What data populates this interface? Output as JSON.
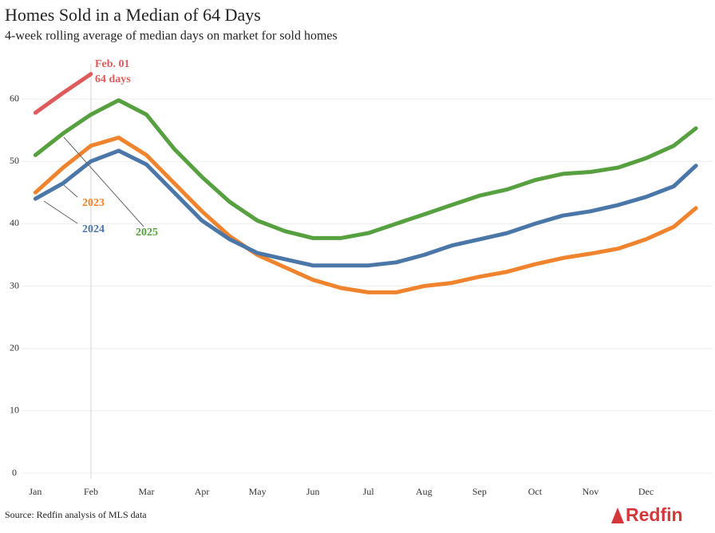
{
  "chart_data": {
    "type": "line",
    "title": "Homes Sold in a Median of 64 Days",
    "subtitle": "4-week rolling average of median days on market for sold homes",
    "source": "Source: Redfin analysis of MLS data",
    "logo": "Redfin",
    "annotation": [
      "Feb. 01",
      "64 days"
    ],
    "x": [
      0,
      0.5,
      1,
      1.5,
      2,
      2.5,
      3,
      3.5,
      4,
      4.5,
      5,
      5.5,
      6,
      6.5,
      7,
      7.5,
      8,
      8.5,
      9,
      9.5,
      10,
      10.5,
      11,
      11.5,
      11.9
    ],
    "series": [
      {
        "name": "2023",
        "color": "#f0832d",
        "values": [
          45,
          49,
          52.5,
          53.8,
          51,
          46.5,
          42,
          38,
          35,
          33,
          31,
          29.7,
          29,
          29,
          30,
          30.5,
          31.5,
          32.3,
          33.5,
          34.5,
          35.2,
          36,
          37.5,
          39.5,
          42.5
        ]
      },
      {
        "name": "2024",
        "color": "#4a77a8",
        "values": [
          44,
          46.5,
          50,
          51.7,
          49.5,
          45,
          40.5,
          37.5,
          35.3,
          34.3,
          33.3,
          33.3,
          33.3,
          33.8,
          35,
          36.5,
          37.5,
          38.5,
          40,
          41.3,
          42,
          43,
          44.3,
          46,
          49.3
        ]
      },
      {
        "name": "2025",
        "color": "#56a040",
        "values": [
          51,
          54.5,
          57.5,
          59.8,
          57.5,
          52,
          47.5,
          43.5,
          40.5,
          38.8,
          37.7,
          37.7,
          38.5,
          40,
          41.5,
          43,
          44.5,
          45.5,
          47,
          48,
          48.3,
          49,
          50.5,
          52.5,
          55.3
        ]
      },
      {
        "color": "#df5b5b",
        "values": [
          57.8,
          61,
          64,
          null,
          null,
          null,
          null,
          null,
          null,
          null,
          null,
          null,
          null,
          null,
          null,
          null,
          null,
          null,
          null,
          null,
          null,
          null,
          null,
          null,
          null
        ]
      }
    ],
    "xlim": [
      -0.25,
      12.2
    ],
    "xticks": [
      {
        "value": 0,
        "label": "Jan"
      },
      {
        "value": 1,
        "label": "Feb"
      },
      {
        "value": 2,
        "label": "Mar"
      },
      {
        "value": 3,
        "label": "Apr"
      },
      {
        "value": 4,
        "label": "May"
      },
      {
        "value": 5,
        "label": "Jun"
      },
      {
        "value": 6,
        "label": "Jul"
      },
      {
        "value": 7,
        "label": "Aug"
      },
      {
        "value": 8,
        "label": "Sep"
      },
      {
        "value": 9,
        "label": "Oct"
      },
      {
        "value": 10,
        "label": "Nov"
      },
      {
        "value": 11,
        "label": "Dec"
      }
    ],
    "ylim": [
      0,
      65
    ],
    "yticks": [
      0,
      10,
      20,
      30,
      40,
      50,
      60
    ],
    "grid": true
  }
}
